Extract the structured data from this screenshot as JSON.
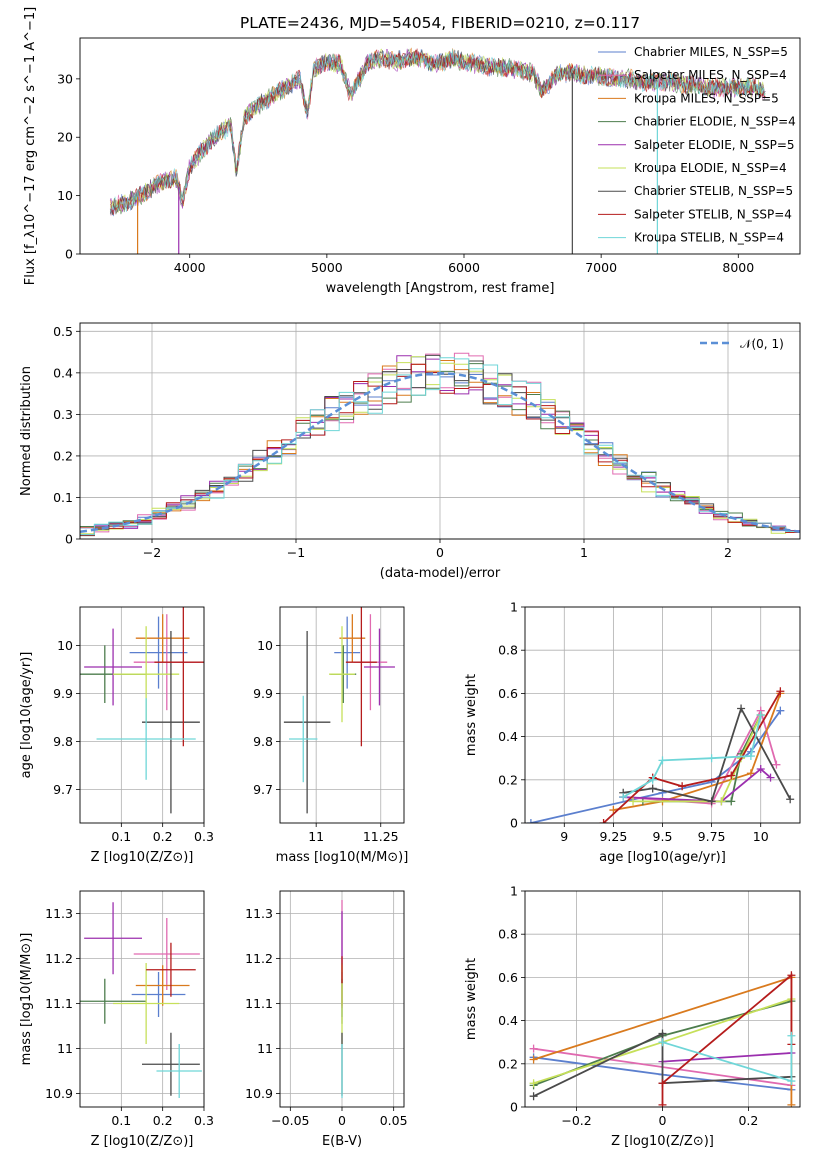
{
  "figure_title": "PLATE=2436, MJD=54054, FIBERID=0210, z=0.117",
  "chart_data": [
    {
      "id": "spectrum",
      "type": "line",
      "xlabel": "wavelength [Angstrom, rest frame]",
      "ylabel": "Flux [f_λ10^−17 erg cm^−2 s^−1 A^−1]",
      "xlim": [
        3200,
        8450
      ],
      "ylim": [
        0,
        37
      ],
      "xticks": [
        4000,
        5000,
        6000,
        7000,
        8000
      ],
      "yticks": [
        0,
        10,
        20,
        30
      ],
      "grid": false,
      "legend_placement": "top-right",
      "x_range": [
        3420,
        8200
      ],
      "envelope": {
        "x": [
          3420,
          3500,
          3600,
          3700,
          3800,
          3900,
          3950,
          4000,
          4100,
          4200,
          4300,
          4340,
          4400,
          4500,
          4600,
          4700,
          4800,
          4860,
          4900,
          5000,
          5100,
          5175,
          5300,
          5400,
          5500,
          5600,
          5700,
          5800,
          5900,
          6000,
          6100,
          6200,
          6300,
          6400,
          6500,
          6563,
          6700,
          6800,
          6900,
          7000,
          7100,
          7200,
          7300,
          7400,
          7500,
          7600,
          7700,
          7800,
          7900,
          8000,
          8100,
          8200
        ],
        "y": [
          8,
          8.5,
          9.5,
          11,
          12.5,
          13,
          9,
          15,
          18,
          20.5,
          22,
          14,
          23.5,
          25.5,
          27,
          28.5,
          30,
          24,
          31.5,
          33,
          32.5,
          27,
          33,
          33.5,
          33,
          33.5,
          33.5,
          32.5,
          33.5,
          33,
          32.5,
          32,
          32,
          31.5,
          31,
          28,
          31,
          31,
          30.5,
          30.5,
          30,
          30,
          29.5,
          29.5,
          29.5,
          29,
          29,
          28.5,
          28.5,
          28.5,
          28.5,
          28
        ]
      },
      "dropouts": [
        3620,
        3920,
        6790,
        7410
      ],
      "series": [
        {
          "name": "Chabrier MILES, N_SSP=5",
          "color": "#5b7fce"
        },
        {
          "name": "Salpeter MILES, N_SSP=4",
          "color": "#e06ab0"
        },
        {
          "name": "Kroupa MILES, N_SSP=5",
          "color": "#d97a1e"
        },
        {
          "name": "Chabrier ELODIE, N_SSP=4",
          "color": "#4d7d4d"
        },
        {
          "name": "Salpeter ELODIE, N_SSP=5",
          "color": "#9b2fae"
        },
        {
          "name": "Kroupa ELODIE, N_SSP=4",
          "color": "#c6e05a"
        },
        {
          "name": "Chabrier STELIB, N_SSP=5",
          "color": "#4a4a4a"
        },
        {
          "name": "Salpeter STELIB, N_SSP=4",
          "color": "#b51c1c"
        },
        {
          "name": "Kroupa STELIB, N_SSP=4",
          "color": "#6fd6d8"
        }
      ]
    },
    {
      "id": "residuals",
      "type": "line",
      "xlabel": "(data-model)/error",
      "ylabel": "Normed distribution",
      "xlim": [
        -2.5,
        2.5
      ],
      "ylim": [
        0,
        0.52
      ],
      "xticks": [
        -2,
        -1,
        0,
        1,
        2
      ],
      "yticks": [
        0.0,
        0.1,
        0.2,
        0.3,
        0.4,
        0.5
      ],
      "grid": true,
      "legend_placement": "top-right",
      "gaussian": {
        "name": "𝒩(0, 1)",
        "color": "#5b8fd6",
        "mu": 0,
        "sigma": 1
      },
      "histogram": {
        "bin_width": 0.1,
        "x_start": -2.5,
        "x_end": 2.5,
        "colors": [
          "#5b7fce",
          "#e06ab0",
          "#d97a1e",
          "#4d7d4d",
          "#9b2fae",
          "#c6e05a",
          "#4a4a4a",
          "#b51c1c",
          "#6fd6d8"
        ]
      }
    },
    {
      "id": "age-vs-Z",
      "type": "scatter",
      "xlabel": "Z [log10(Z/Z⊙)]",
      "ylabel": "age  [log10(age/yr)]",
      "xlim": [
        0.0,
        0.3
      ],
      "ylim": [
        9.63,
        10.08
      ],
      "xticks": [
        0.1,
        0.2,
        0.3
      ],
      "yticks": [
        9.7,
        9.8,
        9.9,
        10.0
      ],
      "grid": true,
      "points": [
        {
          "x": 0.19,
          "y": 9.985,
          "xerr": 0.07,
          "yerr": 0.075,
          "color": "#5b7fce"
        },
        {
          "x": 0.21,
          "y": 9.965,
          "xerr": 0.08,
          "yerr": 0.1,
          "color": "#e06ab0"
        },
        {
          "x": 0.2,
          "y": 10.015,
          "xerr": 0.065,
          "yerr": 0.05,
          "color": "#d97a1e"
        },
        {
          "x": 0.06,
          "y": 9.94,
          "xerr": 0.1,
          "yerr": 0.06,
          "color": "#4d7d4d"
        },
        {
          "x": 0.08,
          "y": 9.955,
          "xerr": 0.07,
          "yerr": 0.08,
          "color": "#9b2fae"
        },
        {
          "x": 0.16,
          "y": 9.94,
          "xerr": 0.08,
          "yerr": 0.1,
          "color": "#c6e05a"
        },
        {
          "x": 0.22,
          "y": 9.84,
          "xerr": 0.07,
          "yerr": 0.19,
          "color": "#4a4a4a"
        },
        {
          "x": 0.25,
          "y": 9.965,
          "xerr": 0.07,
          "yerr": 0.175,
          "color": "#b51c1c"
        },
        {
          "x": 0.16,
          "y": 9.805,
          "xerr": 0.12,
          "yerr": 0.085,
          "color": "#6fd6d8"
        }
      ]
    },
    {
      "id": "age-vs-mass",
      "type": "scatter",
      "xlabel": "mass [log10(M/M⊙)]",
      "ylabel": "",
      "xlim": [
        10.86,
        11.34
      ],
      "ylim": [
        9.63,
        10.08
      ],
      "xticks": [
        11.0,
        11.25
      ],
      "yticks": [
        9.7,
        9.8,
        9.9,
        10.0
      ],
      "grid": true,
      "points": [
        {
          "x": 11.12,
          "y": 9.985,
          "xerr": 0.05,
          "yerr": 0.075,
          "color": "#5b7fce"
        },
        {
          "x": 11.21,
          "y": 9.965,
          "xerr": 0.065,
          "yerr": 0.1,
          "color": "#e06ab0"
        },
        {
          "x": 11.14,
          "y": 10.015,
          "xerr": 0.05,
          "yerr": 0.05,
          "color": "#d97a1e"
        },
        {
          "x": 11.105,
          "y": 9.94,
          "xerr": 0.05,
          "yerr": 0.06,
          "color": "#4d7d4d"
        },
        {
          "x": 11.245,
          "y": 9.955,
          "xerr": 0.06,
          "yerr": 0.08,
          "color": "#9b2fae"
        },
        {
          "x": 11.1,
          "y": 9.94,
          "xerr": 0.05,
          "yerr": 0.1,
          "color": "#c6e05a"
        },
        {
          "x": 10.965,
          "y": 9.84,
          "xerr": 0.09,
          "yerr": 0.19,
          "color": "#4a4a4a"
        },
        {
          "x": 11.175,
          "y": 9.965,
          "xerr": 0.06,
          "yerr": 0.175,
          "color": "#b51c1c"
        },
        {
          "x": 10.95,
          "y": 9.805,
          "xerr": 0.055,
          "yerr": 0.09,
          "color": "#6fd6d8"
        }
      ]
    },
    {
      "id": "weight-vs-age",
      "type": "line",
      "xlabel": "age  [log10(age/yr)]",
      "ylabel": "mass weight",
      "xlim": [
        8.8,
        10.2
      ],
      "ylim": [
        0.0,
        1.0
      ],
      "xticks": [
        9.0,
        9.25,
        9.5,
        9.75,
        10.0
      ],
      "yticks": [
        0.0,
        0.2,
        0.4,
        0.6,
        0.8,
        1.0
      ],
      "grid": true,
      "series": [
        {
          "color": "#5b7fce",
          "x": [
            8.83,
            9.5,
            9.75,
            9.95,
            10.1
          ],
          "y": [
            0.0,
            0.14,
            0.19,
            0.33,
            0.52
          ]
        },
        {
          "color": "#e06ab0",
          "x": [
            9.3,
            9.75,
            10.0,
            10.08
          ],
          "y": [
            0.12,
            0.09,
            0.52,
            0.27
          ]
        },
        {
          "color": "#d97a1e",
          "x": [
            9.25,
            9.5,
            9.95,
            10.1
          ],
          "y": [
            0.06,
            0.1,
            0.23,
            0.6
          ]
        },
        {
          "color": "#4d7d4d",
          "x": [
            9.4,
            9.85,
            9.9,
            10.0
          ],
          "y": [
            0.1,
            0.1,
            0.32,
            0.5
          ]
        },
        {
          "color": "#9b2fae",
          "x": [
            9.3,
            9.8,
            10.0,
            10.05
          ],
          "y": [
            0.12,
            0.1,
            0.25,
            0.21
          ]
        },
        {
          "color": "#c6e05a",
          "x": [
            9.35,
            9.8,
            9.9,
            10.0
          ],
          "y": [
            0.1,
            0.1,
            0.3,
            0.5
          ]
        },
        {
          "color": "#4a4a4a",
          "x": [
            9.3,
            9.45,
            9.75,
            9.9,
            10.15
          ],
          "y": [
            0.14,
            0.16,
            0.1,
            0.53,
            0.11
          ]
        },
        {
          "color": "#b51c1c",
          "x": [
            9.2,
            9.45,
            9.6,
            9.85,
            10.1
          ],
          "y": [
            0.0,
            0.21,
            0.17,
            0.22,
            0.61
          ]
        },
        {
          "color": "#6fd6d8",
          "x": [
            9.3,
            9.45,
            9.5,
            9.75,
            9.95,
            10.0
          ],
          "y": [
            0.12,
            0.2,
            0.29,
            0.3,
            0.31,
            0.5
          ]
        }
      ]
    },
    {
      "id": "mass-vs-Z",
      "type": "scatter",
      "xlabel": "Z [log10(Z/Z⊙)]",
      "ylabel": "mass [log10(M/M⊙)]",
      "xlim": [
        0.0,
        0.3
      ],
      "ylim": [
        10.87,
        11.35
      ],
      "xticks": [
        0.1,
        0.2,
        0.3
      ],
      "yticks": [
        10.9,
        11.0,
        11.1,
        11.2,
        11.3
      ],
      "grid": true,
      "points": [
        {
          "x": 0.19,
          "y": 11.12,
          "xerr": 0.065,
          "yerr": 0.05,
          "color": "#5b7fce"
        },
        {
          "x": 0.21,
          "y": 11.21,
          "xerr": 0.08,
          "yerr": 0.08,
          "color": "#e06ab0"
        },
        {
          "x": 0.2,
          "y": 11.14,
          "xerr": 0.065,
          "yerr": 0.045,
          "color": "#d97a1e"
        },
        {
          "x": 0.06,
          "y": 11.105,
          "xerr": 0.1,
          "yerr": 0.05,
          "color": "#4d7d4d"
        },
        {
          "x": 0.08,
          "y": 11.245,
          "xerr": 0.07,
          "yerr": 0.08,
          "color": "#9b2fae"
        },
        {
          "x": 0.16,
          "y": 11.1,
          "xerr": 0.08,
          "yerr": 0.09,
          "color": "#c6e05a"
        },
        {
          "x": 0.22,
          "y": 10.965,
          "xerr": 0.07,
          "yerr": 0.07,
          "color": "#4a4a4a"
        },
        {
          "x": 0.22,
          "y": 11.175,
          "xerr": 0.06,
          "yerr": 0.06,
          "color": "#b51c1c"
        },
        {
          "x": 0.24,
          "y": 10.95,
          "xerr": 0.055,
          "yerr": 0.06,
          "color": "#6fd6d8"
        }
      ]
    },
    {
      "id": "mass-vs-EBV",
      "type": "scatter",
      "xlabel": "E(B-V)",
      "ylabel": "",
      "xlim": [
        -0.06,
        0.06
      ],
      "ylim": [
        10.87,
        11.35
      ],
      "xticks": [
        -0.05,
        0.0,
        0.05
      ],
      "yticks": [
        10.9,
        11.0,
        11.1,
        11.2,
        11.3
      ],
      "grid": true,
      "points": [
        {
          "x": 0.0,
          "y": 11.12,
          "xerr": 0.0,
          "yerr": 0.05,
          "color": "#5b7fce"
        },
        {
          "x": 0.0,
          "y": 11.21,
          "xerr": 0.0,
          "yerr": 0.12,
          "color": "#e06ab0"
        },
        {
          "x": 0.0,
          "y": 11.14,
          "xerr": 0.0,
          "yerr": 0.045,
          "color": "#d97a1e"
        },
        {
          "x": 0.0,
          "y": 11.105,
          "xerr": 0.0,
          "yerr": 0.05,
          "color": "#4d7d4d"
        },
        {
          "x": 0.0,
          "y": 11.245,
          "xerr": 0.0,
          "yerr": 0.06,
          "color": "#9b2fae"
        },
        {
          "x": 0.0,
          "y": 11.1,
          "xerr": 0.0,
          "yerr": 0.09,
          "color": "#c6e05a"
        },
        {
          "x": 0.0,
          "y": 10.965,
          "xerr": 0.0,
          "yerr": 0.07,
          "color": "#4a4a4a"
        },
        {
          "x": 0.0,
          "y": 11.175,
          "xerr": 0.0,
          "yerr": 0.03,
          "color": "#b51c1c"
        },
        {
          "x": 0.0,
          "y": 10.95,
          "xerr": 0.0,
          "yerr": 0.06,
          "color": "#6fd6d8"
        }
      ]
    },
    {
      "id": "weight-vs-Z",
      "type": "line",
      "xlabel": "Z [log10(Z/Z⊙)]",
      "ylabel": "mass weight",
      "xlim": [
        -0.32,
        0.32
      ],
      "ylim": [
        0.0,
        1.0
      ],
      "xticks": [
        -0.2,
        0.0,
        0.2
      ],
      "yticks": [
        0.0,
        0.2,
        0.4,
        0.6,
        0.8,
        1.0
      ],
      "grid": true,
      "series": [
        {
          "color": "#5b7fce",
          "x": [
            -0.3,
            0.0,
            0.3
          ],
          "y": [
            0.23,
            0.15,
            0.08
          ]
        },
        {
          "color": "#e06ab0",
          "x": [
            -0.3,
            0.3
          ],
          "y": [
            0.27,
            0.1
          ]
        },
        {
          "color": "#d97a1e",
          "x": [
            -0.3,
            0.3,
            0.3
          ],
          "y": [
            0.22,
            0.6,
            0.01
          ]
        },
        {
          "color": "#4d7d4d",
          "x": [
            -0.3,
            0.0,
            0.3
          ],
          "y": [
            0.1,
            0.33,
            0.49
          ]
        },
        {
          "color": "#9b2fae",
          "x": [
            0.0,
            0.3
          ],
          "y": [
            0.21,
            0.25
          ]
        },
        {
          "color": "#c6e05a",
          "x": [
            -0.3,
            0.0,
            0.3
          ],
          "y": [
            0.11,
            0.3,
            0.5
          ]
        },
        {
          "color": "#4a4a4a",
          "x": [
            -0.3,
            0.0,
            0.0,
            0.3
          ],
          "y": [
            0.05,
            0.34,
            0.11,
            0.14
          ]
        },
        {
          "color": "#b51c1c",
          "x": [
            0.0,
            0.0,
            0.3,
            0.3
          ],
          "y": [
            0.01,
            0.11,
            0.61,
            0.29
          ]
        },
        {
          "color": "#6fd6d8",
          "x": [
            0.0,
            0.3,
            0.3
          ],
          "y": [
            0.3,
            0.12,
            0.33
          ]
        }
      ]
    }
  ]
}
